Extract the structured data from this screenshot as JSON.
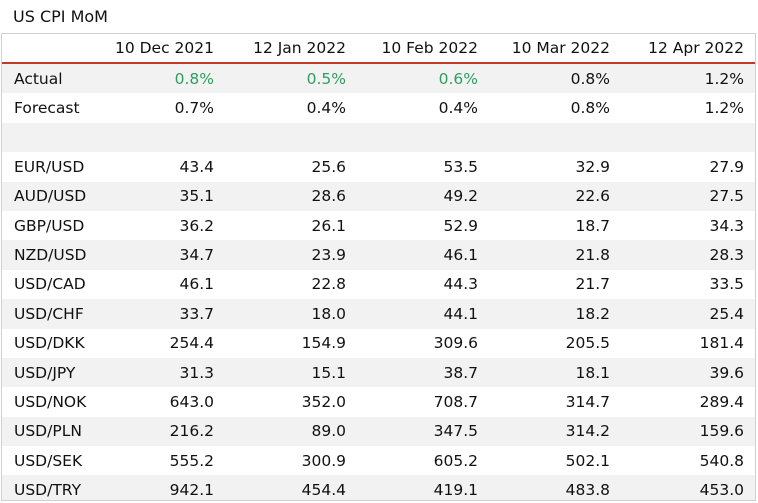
{
  "title": "US CPI MoM",
  "columns": [
    "10 Dec 2021",
    "12 Jan 2022",
    "10 Feb 2022",
    "10 Mar 2022",
    "12 Apr 2022"
  ],
  "rows": [
    {
      "label": "Actual",
      "values": [
        "0.8%",
        "0.5%",
        "0.6%",
        "0.8%",
        "1.2%"
      ],
      "highlight": [
        true,
        true,
        true,
        false,
        false
      ]
    },
    {
      "label": "Forecast",
      "values": [
        "0.7%",
        "0.4%",
        "0.4%",
        "0.8%",
        "1.2%"
      ],
      "highlight": [
        false,
        false,
        false,
        false,
        false
      ]
    },
    {
      "label": "",
      "values": [
        "",
        "",
        "",
        "",
        ""
      ],
      "highlight": [
        false,
        false,
        false,
        false,
        false
      ]
    },
    {
      "label": "EUR/USD",
      "values": [
        "43.4",
        "25.6",
        "53.5",
        "32.9",
        "27.9"
      ],
      "highlight": [
        false,
        false,
        false,
        false,
        false
      ]
    },
    {
      "label": "AUD/USD",
      "values": [
        "35.1",
        "28.6",
        "49.2",
        "22.6",
        "27.5"
      ],
      "highlight": [
        false,
        false,
        false,
        false,
        false
      ]
    },
    {
      "label": "GBP/USD",
      "values": [
        "36.2",
        "26.1",
        "52.9",
        "18.7",
        "34.3"
      ],
      "highlight": [
        false,
        false,
        false,
        false,
        false
      ]
    },
    {
      "label": "NZD/USD",
      "values": [
        "34.7",
        "23.9",
        "46.1",
        "21.8",
        "28.3"
      ],
      "highlight": [
        false,
        false,
        false,
        false,
        false
      ]
    },
    {
      "label": "USD/CAD",
      "values": [
        "46.1",
        "22.8",
        "44.3",
        "21.7",
        "33.5"
      ],
      "highlight": [
        false,
        false,
        false,
        false,
        false
      ]
    },
    {
      "label": "USD/CHF",
      "values": [
        "33.7",
        "18.0",
        "44.1",
        "18.2",
        "25.4"
      ],
      "highlight": [
        false,
        false,
        false,
        false,
        false
      ]
    },
    {
      "label": "USD/DKK",
      "values": [
        "254.4",
        "154.9",
        "309.6",
        "205.5",
        "181.4"
      ],
      "highlight": [
        false,
        false,
        false,
        false,
        false
      ]
    },
    {
      "label": "USD/JPY",
      "values": [
        "31.3",
        "15.1",
        "38.7",
        "18.1",
        "39.6"
      ],
      "highlight": [
        false,
        false,
        false,
        false,
        false
      ]
    },
    {
      "label": "USD/NOK",
      "values": [
        "643.0",
        "352.0",
        "708.7",
        "314.7",
        "289.4"
      ],
      "highlight": [
        false,
        false,
        false,
        false,
        false
      ]
    },
    {
      "label": "USD/PLN",
      "values": [
        "216.2",
        "89.0",
        "347.5",
        "314.2",
        "159.6"
      ],
      "highlight": [
        false,
        false,
        false,
        false,
        false
      ]
    },
    {
      "label": "USD/SEK",
      "values": [
        "555.2",
        "300.9",
        "605.2",
        "502.1",
        "540.8"
      ],
      "highlight": [
        false,
        false,
        false,
        false,
        false
      ]
    },
    {
      "label": "USD/TRY",
      "values": [
        "942.1",
        "454.4",
        "419.1",
        "483.8",
        "453.0"
      ],
      "highlight": [
        false,
        false,
        false,
        false,
        false
      ]
    }
  ],
  "colors": {
    "positive": "#2e9e5e",
    "header_rule": "#c0392b",
    "band": "#f2f2f2"
  }
}
